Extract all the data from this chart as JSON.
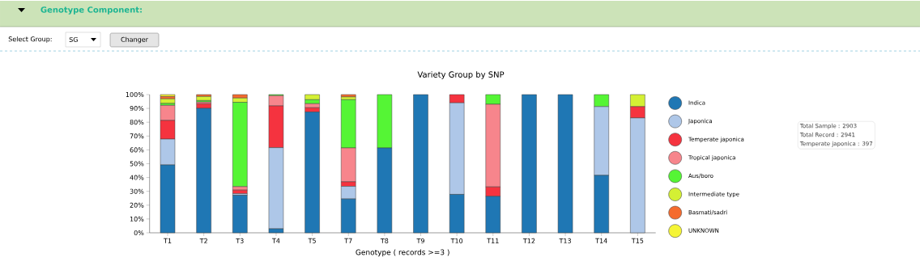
{
  "chart_data": {
    "type": "bar",
    "stacked": true,
    "title": "Variety Group by SNP",
    "xlabel": "Genotype ( records >=3 )",
    "categories": [
      "T1",
      "T2",
      "T3",
      "T4",
      "T5",
      "T7",
      "T8",
      "T9",
      "T10",
      "T11",
      "T12",
      "T13",
      "T14",
      "T15"
    ],
    "series": [
      {
        "name": "Indica",
        "color": "#1f77b4",
        "values": [
          49.1,
          90.1,
          27.2,
          2.9,
          87.4,
          24.5,
          61.4,
          100,
          27.8,
          26.4,
          100,
          100,
          41.6,
          0
        ]
      },
      {
        "name": "Japonica",
        "color": "#aec7e8",
        "values": [
          18.7,
          0,
          1.1,
          58.7,
          0,
          9.1,
          0,
          0,
          66.2,
          0,
          0,
          0,
          49.7,
          83.1
        ]
      },
      {
        "name": "Temperate japonica",
        "color": "#f5333f",
        "values": [
          13.5,
          3.3,
          2.6,
          30.2,
          3.1,
          3.3,
          0,
          0,
          6.0,
          6.8,
          0,
          0,
          0,
          8.2
        ]
      },
      {
        "name": "Tropical japonica",
        "color": "#f7858c",
        "values": [
          10.9,
          1.2,
          2.5,
          7.4,
          2.9,
          24.5,
          0,
          0,
          0,
          59.8,
          0,
          0,
          0,
          0
        ]
      },
      {
        "name": "Aus/boro",
        "color": "#55f535",
        "values": [
          1.4,
          1.1,
          61.0,
          0.8,
          2.9,
          34.9,
          38.6,
          0,
          0,
          7.0,
          0,
          0,
          8.7,
          0
        ]
      },
      {
        "name": "Intermediate type",
        "color": "#d4f034",
        "values": [
          3.3,
          2.9,
          3.1,
          0,
          3.7,
          2.0,
          0,
          0,
          0,
          0,
          0,
          0,
          0,
          8.7
        ]
      },
      {
        "name": "Basmati/sadri",
        "color": "#f56b2e",
        "values": [
          1.7,
          1.4,
          2.5,
          0,
          0,
          1.7,
          0,
          0,
          0,
          0,
          0,
          0,
          0,
          0
        ]
      },
      {
        "name": "UNKNOWN",
        "color": "#f5f536",
        "values": [
          1.4,
          0,
          0,
          0,
          0,
          0,
          0,
          0,
          0,
          0,
          0,
          0,
          0,
          0
        ]
      }
    ],
    "ylim": [
      0,
      100
    ],
    "yticks": [
      {
        "value": 0,
        "label": "0%"
      },
      {
        "value": 10,
        "label": "10%"
      },
      {
        "value": 20,
        "label": "20%"
      },
      {
        "value": 30,
        "label": "30%"
      },
      {
        "value": 40,
        "label": "40%"
      },
      {
        "value": 50,
        "label": "50%"
      },
      {
        "value": 60,
        "label": "60%"
      },
      {
        "value": 70,
        "label": "70%"
      },
      {
        "value": 80,
        "label": "80%"
      },
      {
        "value": 90,
        "label": "90%"
      },
      {
        "value": 100,
        "label": "100%"
      }
    ],
    "legend": "right",
    "annotations": [
      "Genotype Component:",
      "Select Group:",
      "SG",
      "Changer",
      "Total Sample : 2903",
      "Total Record : 2941",
      "Temperate japonica : 397"
    ]
  }
}
